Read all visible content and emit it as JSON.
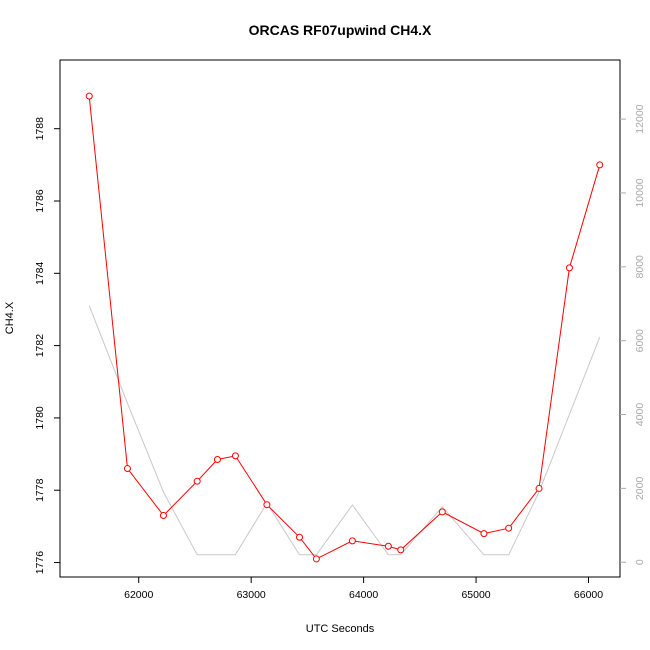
{
  "chart_data": {
    "type": "line",
    "title": "ORCAS RF07upwind CH4.X",
    "xlabel": "UTC Seconds",
    "ylabel": "CH4.X",
    "y2label": "",
    "xlim": [
      61300,
      66280
    ],
    "ylim": [
      1775.6,
      1789.9
    ],
    "y2lim": [
      -400,
      13600
    ],
    "x_ticks": [
      62000,
      63000,
      64000,
      65000,
      66000
    ],
    "y_ticks": [
      1776,
      1778,
      1780,
      1782,
      1784,
      1786,
      1788
    ],
    "y2_ticks": [
      0,
      2000,
      4000,
      6000,
      8000,
      10000,
      12000
    ],
    "grid": false,
    "series": [
      {
        "name": "",
        "axis": "left",
        "color": "#ff0000",
        "marker": "open-circle",
        "x": [
          61560,
          61900,
          62220,
          62520,
          62700,
          62860,
          63140,
          63430,
          63580,
          63900,
          64220,
          64330,
          64700,
          65070,
          65290,
          65560,
          65830,
          66100
        ],
        "y": [
          1788.9,
          1778.6,
          1777.3,
          1778.25,
          1778.85,
          1778.95,
          1777.6,
          1776.7,
          1776.1,
          1776.6,
          1776.45,
          1776.35,
          1777.4,
          1776.8,
          1776.95,
          1778.05,
          1784.15,
          1787.0
        ]
      },
      {
        "name": "",
        "axis": "right",
        "color": "#c8c8c8",
        "marker": "none",
        "x": [
          61560,
          61900,
          62220,
          62520,
          62860,
          63140,
          63430,
          63580,
          63900,
          64220,
          64330,
          64700,
          65070,
          65290,
          65560,
          65830,
          66100
        ],
        "y": [
          6950,
          4300,
          1900,
          200,
          200,
          1600,
          200,
          200,
          1550,
          200,
          200,
          1500,
          200,
          200,
          1900,
          4000,
          6100
        ]
      }
    ]
  }
}
